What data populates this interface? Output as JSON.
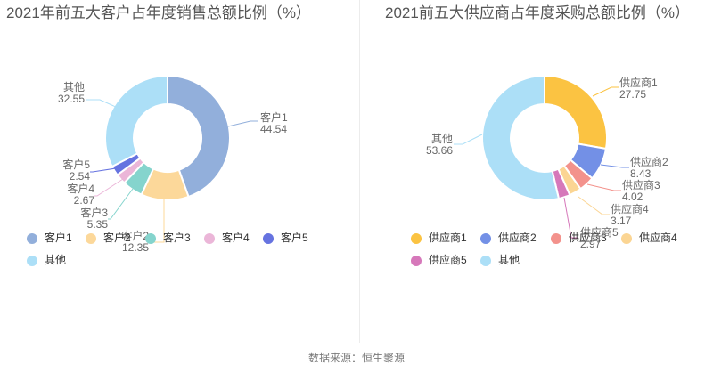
{
  "chart_data": [
    {
      "type": "pie",
      "subtype": "donut",
      "title": "2021年前五大客户占年度销售总额比例（%）",
      "labels": [
        "客户1",
        "客户2",
        "客户3",
        "客户4",
        "客户5",
        "其他"
      ],
      "values": [
        44.54,
        12.35,
        5.35,
        2.67,
        2.54,
        32.55
      ],
      "colors": [
        "#92AFDB",
        "#FCD89A",
        "#85D4CD",
        "#EBB6D8",
        "#6673E0",
        "#ACDFF7"
      ],
      "legend": [
        "客户1",
        "客户2",
        "客户3",
        "客户4",
        "客户5",
        "其他"
      ],
      "legend_position": "bottom-left",
      "label_format": "name-and-value-callout",
      "start_angle": "top-clockwise"
    },
    {
      "type": "pie",
      "subtype": "donut",
      "title": "2021前五大供应商占年度采购总额比例（%）",
      "labels": [
        "供应商1",
        "供应商2",
        "供应商3",
        "供应商4",
        "供应商5",
        "其他"
      ],
      "values": [
        27.75,
        8.43,
        4.02,
        3.17,
        2.97,
        53.66
      ],
      "colors": [
        "#FBC342",
        "#7390E6",
        "#F3928C",
        "#FBD593",
        "#D678BA",
        "#ACDFF7"
      ],
      "legend": [
        "供应商1",
        "供应商2",
        "供应商3",
        "供应商4",
        "供应商5",
        "其他"
      ],
      "legend_position": "bottom-left",
      "label_format": "name-and-value-callout",
      "start_angle": "top-clockwise"
    }
  ],
  "source_note": "数据来源：恒生聚源"
}
